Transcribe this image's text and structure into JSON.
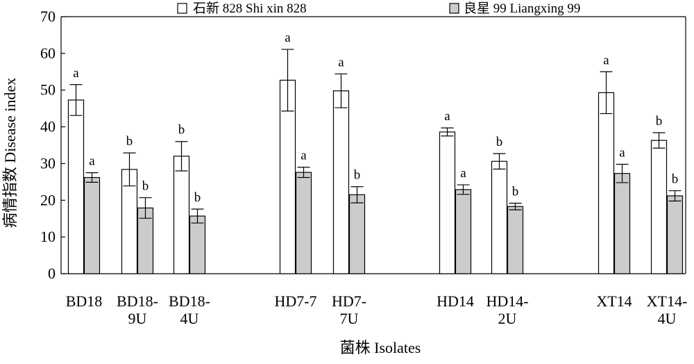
{
  "chart_data": {
    "type": "bar",
    "title": "",
    "xlabel": "菌株 Isolates",
    "ylabel": "病情指数 Disease index",
    "ylim": [
      0,
      70
    ],
    "yticks": [
      0,
      10,
      20,
      30,
      40,
      50,
      60,
      70
    ],
    "grid": false,
    "legend_position": "top",
    "categories": [
      {
        "label": [
          "BD18"
        ]
      },
      {
        "label": [
          "BD18-",
          "9U"
        ]
      },
      {
        "label": [
          "BD18-",
          "4U"
        ]
      },
      {
        "label": [
          "HD7-7"
        ]
      },
      {
        "label": [
          "HD7-",
          "7U"
        ]
      },
      {
        "label": [
          "HD14"
        ]
      },
      {
        "label": [
          "HD14-",
          "2U"
        ]
      },
      {
        "label": [
          "XT14"
        ]
      },
      {
        "label": [
          "XT14-",
          "4U"
        ]
      }
    ],
    "series": [
      {
        "name": "石新 828 Shi xin 828",
        "color": "#ffffff",
        "values": [
          47.3,
          28.4,
          32.0,
          52.7,
          49.8,
          38.6,
          30.6,
          49.3,
          36.3
        ],
        "errors": [
          4.2,
          4.5,
          4.0,
          8.4,
          4.6,
          1.1,
          2.1,
          5.7,
          2.1
        ],
        "significance": [
          "a",
          "b",
          "b",
          "a",
          "a",
          "a",
          "b",
          "a",
          "b"
        ]
      },
      {
        "name": "良星 99 Liangxing 99",
        "color": "#cccccc",
        "values": [
          26.2,
          17.9,
          15.7,
          27.6,
          21.5,
          22.9,
          18.3,
          27.3,
          21.2
        ],
        "errors": [
          1.3,
          2.8,
          1.9,
          1.4,
          2.2,
          1.3,
          0.9,
          2.5,
          1.4
        ],
        "significance": [
          "a",
          "b",
          "b",
          "a",
          "b",
          "a",
          "b",
          "a",
          "b"
        ]
      }
    ]
  }
}
